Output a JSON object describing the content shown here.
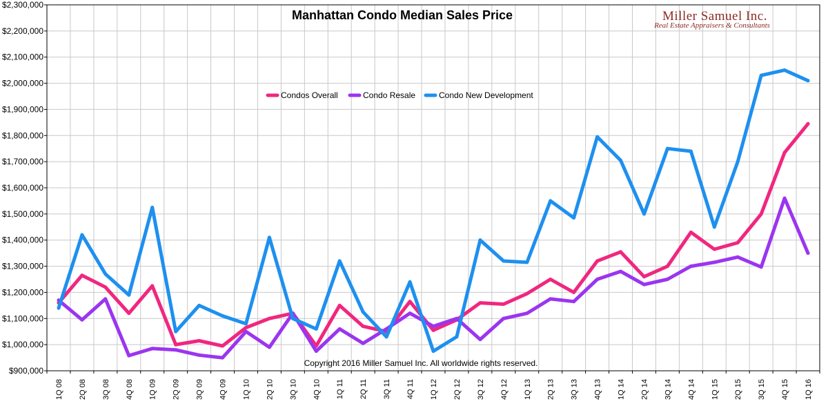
{
  "brand": {
    "name": "Miller Samuel Inc.",
    "tagline": "Real Estate Appraisers & Consultants",
    "color": "#8b2a22"
  },
  "copyright": "Copyright 2016 Miller Samuel Inc.  All worldwide rights reserved.",
  "chart_data": {
    "type": "line",
    "title": "Manhattan Condo Median Sales Price",
    "xlabel": "",
    "ylabel": "",
    "ylim": [
      900000,
      2300000
    ],
    "y_ticks": [
      900000,
      1000000,
      1100000,
      1200000,
      1300000,
      1400000,
      1500000,
      1600000,
      1700000,
      1800000,
      1900000,
      2000000,
      2100000,
      2200000,
      2300000
    ],
    "y_tick_labels": [
      "$900,000",
      "$1,000,000",
      "$1,100,000",
      "$1,200,000",
      "$1,300,000",
      "$1,400,000",
      "$1,500,000",
      "$1,600,000",
      "$1,700,000",
      "$1,800,000",
      "$1,900,000",
      "$2,000,000",
      "$2,100,000",
      "$2,200,000",
      "$2,300,000"
    ],
    "grid": true,
    "legend_position": "top-center",
    "categories": [
      "1Q 08",
      "2Q 08",
      "3Q 08",
      "4Q 08",
      "1Q 09",
      "2Q 09",
      "3Q 09",
      "4Q 09",
      "1Q 10",
      "2Q 10",
      "3Q 10",
      "4Q 10",
      "1Q 11",
      "2Q 11",
      "3Q 11",
      "4Q 11",
      "1Q 12",
      "2Q 12",
      "3Q 12",
      "4Q 12",
      "1Q 13",
      "2Q 13",
      "3Q 13",
      "4Q 13",
      "1Q 14",
      "2Q 14",
      "3Q 14",
      "4Q 14",
      "1Q 15",
      "2Q 15",
      "3Q 15",
      "4Q 15",
      "1Q 16"
    ],
    "series": [
      {
        "name": "Condos Overall",
        "color": "#f0277f",
        "values": [
          1160000,
          1265000,
          1220000,
          1120000,
          1225000,
          1000000,
          1015000,
          995000,
          1065000,
          1100000,
          1120000,
          995000,
          1150000,
          1070000,
          1050000,
          1165000,
          1055000,
          1095000,
          1160000,
          1155000,
          1195000,
          1250000,
          1200000,
          1320000,
          1355000,
          1260000,
          1300000,
          1430000,
          1365000,
          1390000,
          1500000,
          1735000,
          1845000
        ]
      },
      {
        "name": "Condo Resale",
        "color": "#9b35f0",
        "values": [
          1170000,
          1095000,
          1175000,
          958000,
          985000,
          980000,
          960000,
          950000,
          1050000,
          990000,
          1120000,
          975000,
          1060000,
          1005000,
          1060000,
          1120000,
          1070000,
          1100000,
          1020000,
          1100000,
          1120000,
          1175000,
          1165000,
          1250000,
          1280000,
          1230000,
          1250000,
          1300000,
          1315000,
          1335000,
          1297000,
          1560000,
          1350000
        ]
      },
      {
        "name": "Condo New Development",
        "color": "#1e90ef",
        "values": [
          1140000,
          1420000,
          1270000,
          1190000,
          1525000,
          1050000,
          1150000,
          1110000,
          1080000,
          1410000,
          1100000,
          1060000,
          1320000,
          1125000,
          1030000,
          1240000,
          975000,
          1030000,
          1400000,
          1320000,
          1315000,
          1550000,
          1485000,
          1795000,
          1705000,
          1500000,
          1750000,
          1740000,
          1450000,
          1700000,
          2030000,
          2050000,
          2010000
        ]
      }
    ]
  }
}
